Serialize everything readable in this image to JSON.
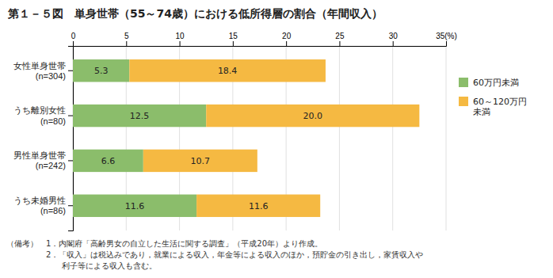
{
  "chart_data": {
    "type": "bar",
    "orientation": "horizontal",
    "stacked": true,
    "title": "第１－５図　単身世帯（55～74歳）における低所得層の割合（年間収入）",
    "categories": [
      "うち未婚男性\n(n=86)",
      "男性単身世帯\n(n=242)",
      "うち離別女性\n(n=80)",
      "女性単身世帯\n(n=304)"
    ],
    "series": [
      {
        "name": "60万円未満",
        "color": "#8BBD6B",
        "values": [
          11.6,
          6.6,
          12.5,
          5.3
        ]
      },
      {
        "name": "60～120万円\n未満",
        "color": "#F5B942",
        "values": [
          11.6,
          10.7,
          20.0,
          18.4
        ],
        "value_labels": [
          "11.6",
          "10.7",
          "20.0",
          "18.4"
        ]
      }
    ],
    "xlim": [
      0,
      35
    ],
    "xticks": [
      0,
      5,
      10,
      15,
      20,
      25,
      30,
      {
        "value": 35,
        "label": "35(%)"
      }
    ],
    "grid": true,
    "legend": "right",
    "data_labels": true,
    "annotations": [
      "（備考）　1．内閣府「高齢男女の自立した生活に関する調査」（平成20年）より作成。",
      "　　　　　2．「収入」は税込みであり，就業による収入，年金等による収入のほか，預貯金の引き出し，家賃収入や",
      "　　　　　　　利子等による収入も含む。"
    ]
  }
}
